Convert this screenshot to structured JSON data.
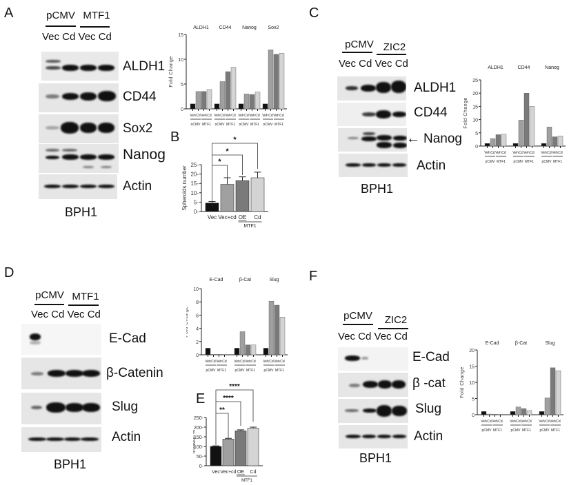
{
  "panels": {
    "A": {
      "letter": "A",
      "groups": [
        "pCMV",
        "MTF1"
      ],
      "lanes": "Vec Cd Vec Cd",
      "proteins": [
        "ALDH1",
        "CD44",
        "Sox2",
        "Nanog",
        "Actin"
      ],
      "cell_line": "BPH1"
    },
    "C": {
      "letter": "C",
      "groups": [
        "pCMV",
        "ZIC2"
      ],
      "lanes": "Vec Cd Vec Cd",
      "proteins": [
        "ALDH1",
        "CD44",
        "Nanog",
        "Actin"
      ],
      "arrow": "←",
      "cell_line": "BPH1"
    },
    "D": {
      "letter": "D",
      "groups": [
        "pCMV",
        "MTF1"
      ],
      "lanes": "Vec Cd Vec Cd",
      "proteins": [
        "E-Cad",
        "β-Catenin",
        "Slug",
        "Actin"
      ],
      "cell_line": "BPH1"
    },
    "F": {
      "letter": "F",
      "groups": [
        "pCMV",
        "ZIC2"
      ],
      "lanes": "Vec Cd Vec Cd",
      "proteins": [
        "E-Cad",
        "β -cat",
        "Slug",
        "Actin"
      ],
      "cell_line": "BPH1"
    },
    "B": {
      "letter": "B"
    },
    "E": {
      "letter": "E"
    }
  },
  "colors": {
    "veh_pcmv": "#111111",
    "cd_pcmv": "#a0a0a0",
    "veh_mtf1": "#7a7a7a",
    "cd_mtf1": "#d4d4d4"
  },
  "chart_data": [
    {
      "id": "A-quant",
      "type": "bar",
      "title": "",
      "ylabel": "Fold Change",
      "ylim": [
        0,
        15
      ],
      "yticks": [
        0,
        5,
        10,
        15
      ],
      "groups": [
        "ALDH1",
        "CD44",
        "Nanog",
        "Sox2"
      ],
      "categories": [
        "Veh pCMV",
        "Cd pCMV",
        "Veh MTF1",
        "Cd MTF1"
      ],
      "sublabels": [
        "Veh",
        "Cd",
        "Veh",
        "Cd"
      ],
      "grouplabels": [
        "pCMV",
        "MTF1"
      ],
      "values": [
        [
          1,
          3.5,
          3.5,
          3.9
        ],
        [
          1,
          5.5,
          7.5,
          8.4
        ],
        [
          1,
          3.0,
          2.9,
          3.4
        ],
        [
          1,
          11.9,
          11.0,
          11.2
        ]
      ]
    },
    {
      "id": "C-quant",
      "type": "bar",
      "title": "",
      "ylabel": "Fold Change",
      "ylim": [
        0,
        25
      ],
      "yticks": [
        0,
        5,
        10,
        15,
        20,
        25
      ],
      "groups": [
        "ALDH1",
        "CD44",
        "Nanog"
      ],
      "categories": [
        "Veh pCMV",
        "Cd pCMV",
        "Veh MTF1",
        "Cd MTF1"
      ],
      "sublabels": [
        "Veh",
        "Cd",
        "Veh",
        "Cd"
      ],
      "grouplabels": [
        "pCMV",
        "MTF1"
      ],
      "values": [
        [
          1,
          2.8,
          4.3,
          4.5
        ],
        [
          1,
          9.8,
          20.0,
          15.0
        ],
        [
          1,
          7.2,
          3.5,
          3.8
        ]
      ]
    },
    {
      "id": "D-quant",
      "type": "bar",
      "title": "",
      "ylabel": "Fold Change",
      "ylim": [
        0,
        10
      ],
      "yticks": [
        0,
        2,
        4,
        6,
        8,
        10
      ],
      "groups": [
        "E-Cad",
        "β-Cat",
        "Slug"
      ],
      "categories": [
        "Veh pCMV",
        "Cd pCMV",
        "Veh MTF1",
        "Cd MTF1"
      ],
      "sublabels": [
        "Veh",
        "Cd",
        "Veh",
        "Cd"
      ],
      "grouplabels": [
        "pCMV",
        "MTF1"
      ],
      "values": [
        [
          1,
          0.02,
          0.02,
          0.02
        ],
        [
          1,
          3.5,
          1.5,
          1.5
        ],
        [
          1,
          8.1,
          7.5,
          5.7
        ]
      ]
    },
    {
      "id": "F-quant",
      "type": "bar",
      "title": "",
      "ylabel": "Fold Change",
      "ylim": [
        0,
        20
      ],
      "yticks": [
        0,
        5,
        10,
        15,
        20
      ],
      "groups": [
        "E-Cad",
        "β-Cat",
        "Slug"
      ],
      "categories": [
        "Veh pCMV",
        "Cd pCMV",
        "Veh MTF1",
        "Cd MTF1"
      ],
      "sublabels": [
        "Veh",
        "Cd",
        "Veh",
        "Cd"
      ],
      "grouplabels": [
        "pCMV",
        "MTF1"
      ],
      "values": [
        [
          1,
          0.2,
          0.05,
          0.05
        ],
        [
          1,
          2.4,
          1.9,
          1.3
        ],
        [
          1,
          5.2,
          14.5,
          13.6
        ]
      ]
    },
    {
      "id": "B",
      "type": "bar",
      "ylabel": "Spheroids number",
      "ylim": [
        0,
        25
      ],
      "yticks": [
        0,
        5,
        10,
        15,
        20,
        25
      ],
      "categories": [
        "Vec",
        "Vec+cd",
        "OE",
        "Cd"
      ],
      "bracket_label": "MTF1",
      "values": [
        4.5,
        14.5,
        16.5,
        18.0
      ],
      "errors": [
        0.8,
        3.5,
        2.0,
        3.0
      ],
      "significance": [
        "*",
        "*",
        "*"
      ]
    },
    {
      "id": "E",
      "type": "bar",
      "ylabel": "Invasion %",
      "ylim": [
        0,
        250
      ],
      "yticks": [
        0,
        50,
        100,
        150,
        200,
        250
      ],
      "categories": [
        "Vec",
        "Vec+cd",
        "OE",
        "Cd"
      ],
      "bracket_label": "MTF1",
      "values": [
        100,
        138,
        181,
        195
      ],
      "errors": [
        3,
        4,
        5,
        5
      ],
      "significance": [
        "**",
        "****",
        "****"
      ]
    }
  ]
}
